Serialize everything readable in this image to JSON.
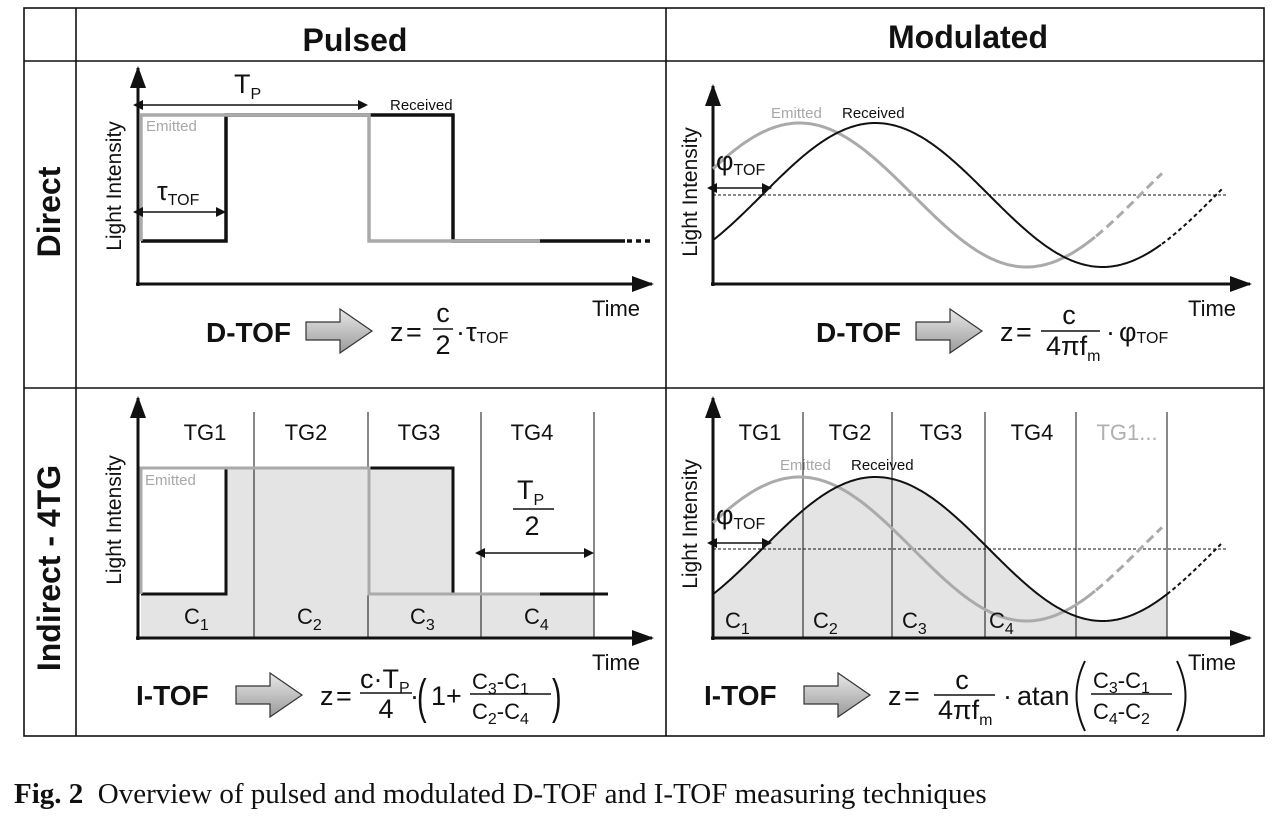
{
  "headers": {
    "pulsed": "Pulsed",
    "modulated": "Modulated",
    "direct": "Direct",
    "indirect": "Indirect - 4TG"
  },
  "axes": {
    "y_label": "Light Intensity",
    "x_label": "Time"
  },
  "direct_pulsed": {
    "emitted": "Emitted",
    "received": "Received",
    "tp": "T",
    "tp_sub": "P",
    "tau": "τ",
    "tau_sub": "TOF",
    "method": "D-TOF",
    "formula": {
      "z": "z",
      "eq": "=",
      "num": "c",
      "den": "2",
      "dot": "·",
      "tau": "τ",
      "tau_sub": "TOF"
    }
  },
  "direct_modulated": {
    "emitted": "Emitted",
    "received": "Received",
    "phi": "φ",
    "phi_sub": "TOF",
    "method": "D-TOF",
    "formula": {
      "z": "z",
      "eq": "=",
      "num": "c",
      "den": "4πf",
      "den_sub": "m",
      "dot": "·",
      "phi": "φ",
      "phi_sub": "TOF"
    }
  },
  "indirect_pulsed": {
    "emitted": "Emitted",
    "tgs": [
      "TG1",
      "TG2",
      "TG3",
      "TG4"
    ],
    "cs": [
      "C",
      "C",
      "C",
      "C"
    ],
    "cs_sub": [
      "1",
      "2",
      "3",
      "4"
    ],
    "tp_num": "T",
    "tp_num_sub": "P",
    "tp_den": "2",
    "method": "I-TOF",
    "formula": {
      "z": "z",
      "eq": "=",
      "num": "c·T",
      "num_sub": "P",
      "den": "4",
      "dot": "·",
      "lpar": "(",
      "one": "1+",
      "c3": "C",
      "c3s": "3",
      "minus": "-",
      "c1": "C",
      "c1s": "1",
      "c2": "C",
      "c2s": "2",
      "c4": "C",
      "c4s": "4",
      "rpar": ")"
    }
  },
  "indirect_modulated": {
    "emitted": "Emitted",
    "received": "Received",
    "tgs": [
      "TG1",
      "TG2",
      "TG3",
      "TG4"
    ],
    "tg_extra": "TG1...",
    "phi": "φ",
    "phi_sub": "TOF",
    "cs": [
      "C",
      "C",
      "C",
      "C"
    ],
    "cs_sub": [
      "1",
      "2",
      "3",
      "4"
    ],
    "method": "I-TOF",
    "formula": {
      "z": "z",
      "eq": "=",
      "num": "c",
      "den": "4πf",
      "den_sub": "m",
      "dot": "·",
      "fn": "atan",
      "c3": "C",
      "c3s": "3",
      "minus": "-",
      "c1": "C",
      "c1s": "1",
      "c4": "C",
      "c4s": "4",
      "c2": "C",
      "c2s": "2"
    }
  },
  "caption": {
    "label": "Fig. 2",
    "text": "Overview of pulsed and modulated D-TOF and I-TOF measuring techniques"
  },
  "colors": {
    "received": "#111111",
    "emitted": "#aaaaaa",
    "fill": "#e4e4e4"
  }
}
